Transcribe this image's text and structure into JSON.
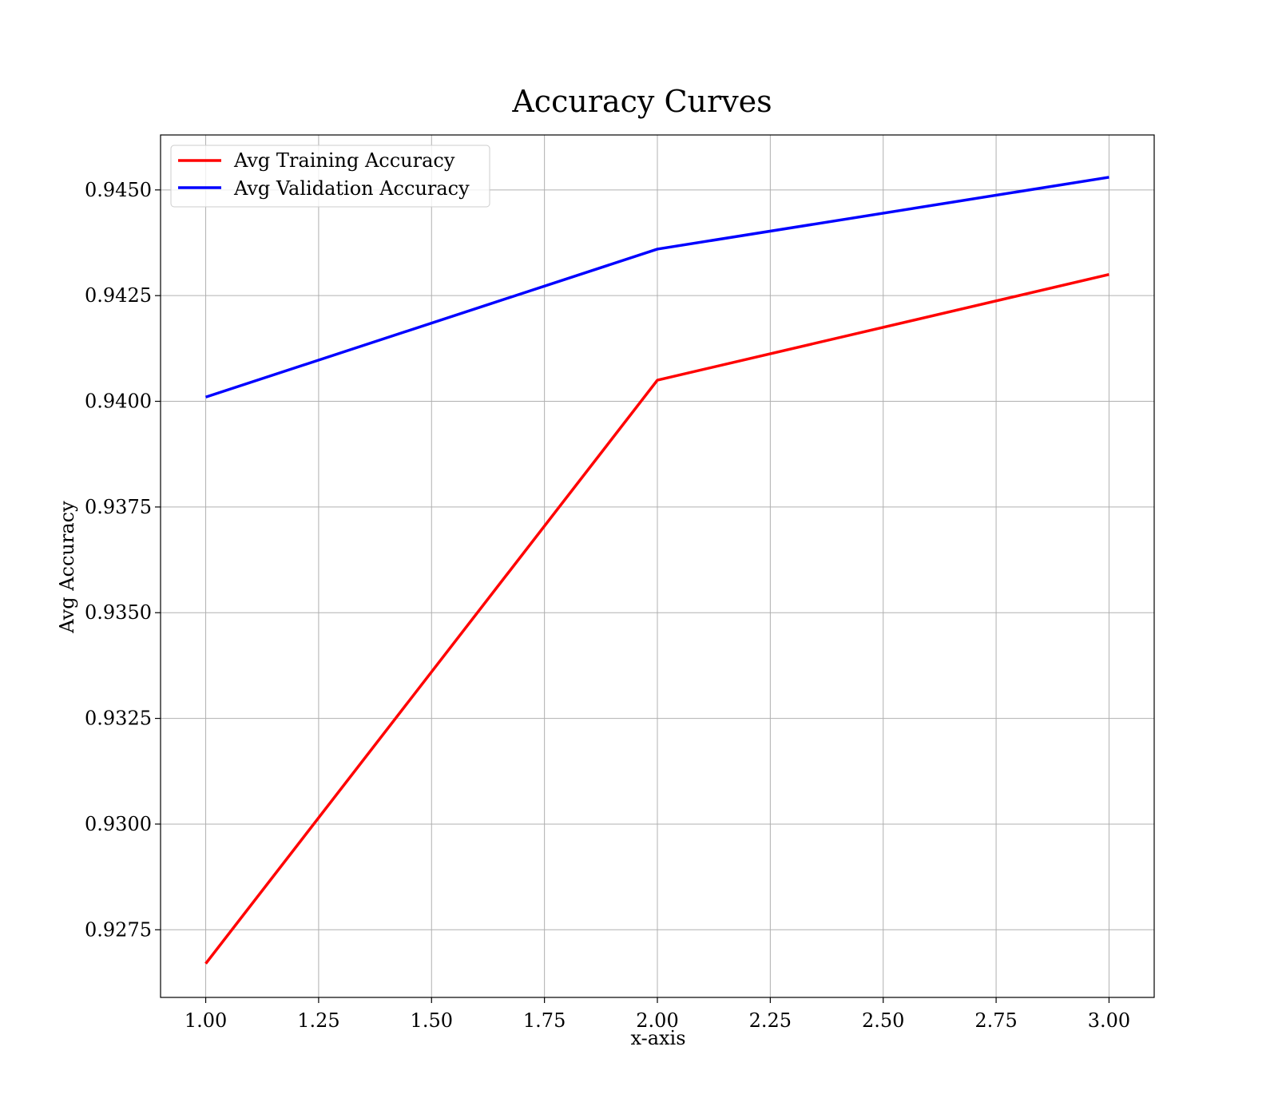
{
  "chart_data": {
    "type": "line",
    "title": "Accuracy Curves",
    "xlabel": "x-axis",
    "ylabel": "Avg Accuracy",
    "x": [
      1.0,
      2.0,
      3.0
    ],
    "xlim": [
      0.9,
      3.1
    ],
    "ylim": [
      0.9259,
      0.9463
    ],
    "xticks": [
      1.0,
      1.25,
      1.5,
      1.75,
      2.0,
      2.25,
      2.5,
      2.75,
      3.0
    ],
    "xtick_labels": [
      "1.00",
      "1.25",
      "1.50",
      "1.75",
      "2.00",
      "2.25",
      "2.50",
      "2.75",
      "3.00"
    ],
    "yticks": [
      0.9275,
      0.93,
      0.9325,
      0.935,
      0.9375,
      0.94,
      0.9425,
      0.945
    ],
    "ytick_labels": [
      "0.9275",
      "0.9300",
      "0.9325",
      "0.9350",
      "0.9375",
      "0.9400",
      "0.9425",
      "0.9450"
    ],
    "grid": true,
    "legend_position": "top-left",
    "series": [
      {
        "name": "Avg Training Accuracy",
        "color": "#ff0000",
        "values": [
          0.9267,
          0.9405,
          0.943
        ]
      },
      {
        "name": "Avg Validation Accuracy",
        "color": "#0000ff",
        "values": [
          0.9401,
          0.9436,
          0.9453
        ]
      }
    ]
  }
}
